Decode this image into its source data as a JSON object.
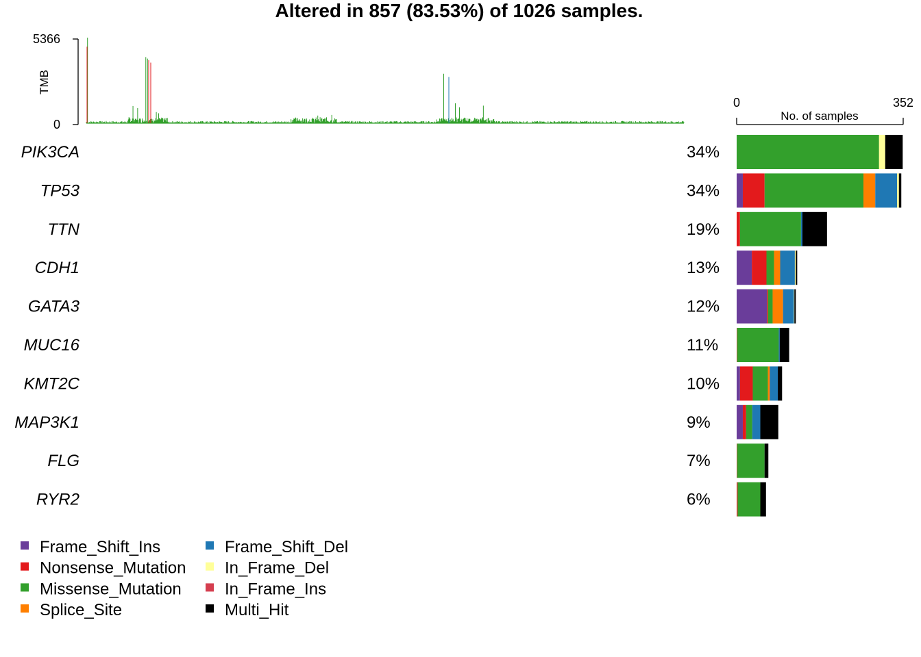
{
  "chart_data": {
    "type": "bar",
    "title": "Altered in 857 (83.53%) of 1026 samples.",
    "tmb_panel": {
      "ylabel": "TMB",
      "ylim": [
        0,
        5366
      ],
      "tick_labels": [
        "5366",
        "0"
      ],
      "color": "#33A02C"
    },
    "bar_axis": {
      "xlabel": "No. of samples",
      "xlim": [
        0,
        352
      ],
      "tick_labels": [
        "0",
        "352"
      ]
    },
    "categories": [
      "PIK3CA",
      "TP53",
      "TTN",
      "CDH1",
      "GATA3",
      "MUC16",
      "KMT2C",
      "MAP3K1",
      "FLG",
      "RYR2"
    ],
    "percentages": [
      "34%",
      "34%",
      "19%",
      "13%",
      "12%",
      "11%",
      "10%",
      "9%",
      "7%",
      "6%"
    ],
    "series": [
      {
        "name": "Frame_Shift_Ins",
        "color": "#6A3D9A",
        "values": [
          0,
          13,
          0,
          32,
          64,
          0,
          7,
          13,
          0,
          0
        ]
      },
      {
        "name": "Nonsense_Mutation",
        "color": "#E31A1C",
        "values": [
          0,
          46,
          7,
          31,
          2,
          1,
          27,
          7,
          1,
          2
        ]
      },
      {
        "name": "Missense_Mutation",
        "color": "#33A02C",
        "values": [
          301,
          209,
          129,
          16,
          10,
          88,
          32,
          13,
          58,
          48
        ]
      },
      {
        "name": "Splice_Site",
        "color": "#FF7F00",
        "values": [
          0,
          25,
          0,
          13,
          22,
          0,
          4,
          0,
          0,
          0
        ]
      },
      {
        "name": "Frame_Shift_Del",
        "color": "#1F78B4",
        "values": [
          0,
          46,
          3,
          31,
          23,
          2,
          17,
          17,
          0,
          0
        ]
      },
      {
        "name": "In_Frame_Del",
        "color": "#FFFF99",
        "values": [
          13,
          4,
          0,
          2,
          1,
          0,
          0,
          0,
          0,
          0
        ]
      },
      {
        "name": "In_Frame_Ins",
        "color": "#D53E4F",
        "values": [
          0,
          0,
          0,
          0,
          0,
          0,
          0,
          0,
          0,
          0
        ]
      },
      {
        "name": "Multi_Hit",
        "color": "#000000",
        "values": [
          37,
          5,
          52,
          3,
          3,
          20,
          9,
          38,
          8,
          12
        ]
      }
    ],
    "legend_order": [
      [
        "Frame_Shift_Ins",
        "Nonsense_Mutation",
        "Missense_Mutation",
        "Splice_Site"
      ],
      [
        "Frame_Shift_Del",
        "In_Frame_Del",
        "In_Frame_Ins",
        "Multi_Hit"
      ]
    ]
  }
}
